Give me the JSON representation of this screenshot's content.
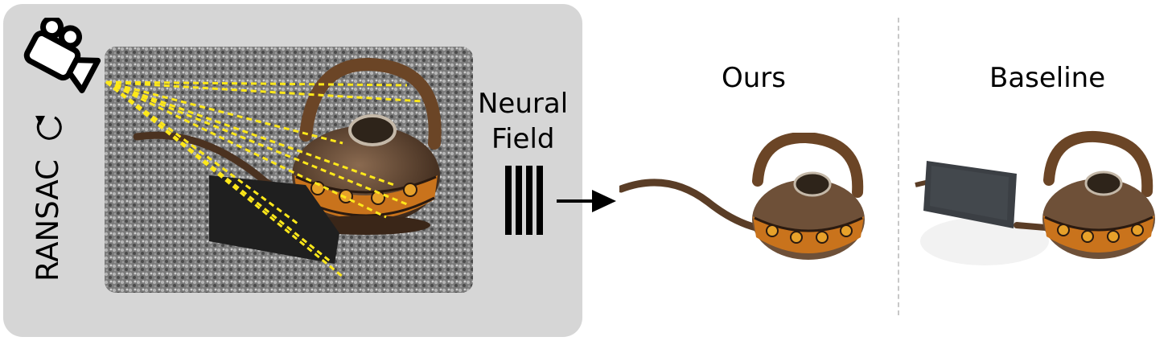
{
  "panel": {
    "ransac_label": "RANSAC",
    "camera_icon": "video-camera-icon",
    "refresh_icon": "refresh-icon",
    "photo_desc_icons": [
      "teapot",
      "black-occluder"
    ]
  },
  "method": {
    "line1": "Neural",
    "line2": "Field",
    "barcode_icon": "barcode-icon",
    "arrow_icon": "arrow-right-icon"
  },
  "results": {
    "ours_label": "Ours",
    "baseline_label": "Baseline"
  },
  "colors": {
    "panel_bg": "#d6d6d6",
    "ray": "#ffe81a",
    "divider": "#c8c8c8",
    "pot_brown": "#6b4526",
    "pot_orange": "#c9731c"
  }
}
